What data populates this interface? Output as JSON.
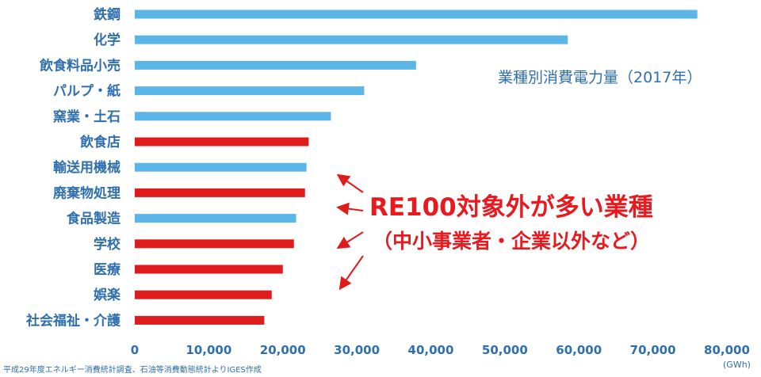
{
  "chart_data": {
    "type": "bar",
    "orientation": "horizontal",
    "title": "業種別消費電力量（2017年）",
    "xlabel": "(GWh)",
    "xlim": [
      0,
      80000
    ],
    "xticks": [
      "0",
      "10,000",
      "20,000",
      "30,000",
      "40,000",
      "50,000",
      "60,000",
      "70,000",
      "80,000"
    ],
    "grid": false,
    "categories": [
      "鉄鋼",
      "化学",
      "飲食料品小売",
      "パルプ・紙",
      "窯業・土石",
      "飲食店",
      "輸送用機械",
      "廃棄物処理",
      "食品製造",
      "学校",
      "医療",
      "娯楽",
      "社会福祉・介護"
    ],
    "values": [
      76000,
      58500,
      38000,
      31000,
      26500,
      23500,
      23200,
      23000,
      21800,
      21500,
      20000,
      18500,
      17500
    ],
    "highlighted": [
      false,
      false,
      false,
      false,
      false,
      true,
      false,
      true,
      false,
      true,
      true,
      true,
      true
    ],
    "colors": {
      "normal": "#5bb5e6",
      "highlight": "#e01b1b",
      "text": "#2f6fae"
    },
    "annotation": {
      "line1": "RE100対象外が多い業種",
      "line2": "（中小事業者・企業以外など）"
    },
    "source": "平成29年度エネルギー消費統計調査、石油等消費動態統計よりIGES作成"
  }
}
